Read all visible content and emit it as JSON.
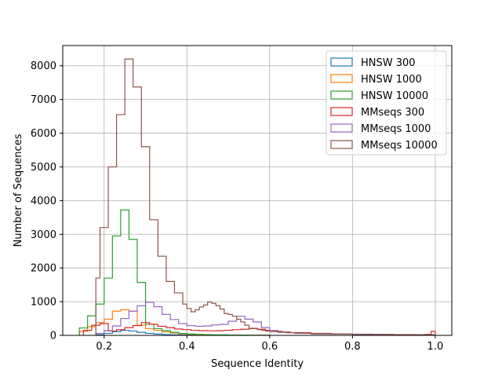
{
  "chart_data": {
    "type": "histogram-step",
    "title": "",
    "xlabel": "Sequence Identity",
    "ylabel": "Number of Sequences",
    "xlim": [
      0.1,
      1.04
    ],
    "ylim": [
      0,
      8600
    ],
    "xticks": [
      0.2,
      0.4,
      0.6,
      0.8,
      1.0
    ],
    "xtick_labels": [
      "0.2",
      "0.4",
      "0.6",
      "0.8",
      "1.0"
    ],
    "yticks": [
      0,
      1000,
      2000,
      3000,
      4000,
      5000,
      6000,
      7000,
      8000
    ],
    "ytick_labels": [
      "0",
      "1000",
      "2000",
      "3000",
      "4000",
      "5000",
      "6000",
      "7000",
      "8000"
    ],
    "grid": true,
    "legend_position": "top-right",
    "series": [
      {
        "name": "HNSW 300",
        "color": "#1f77b4",
        "edges": [
          0.18,
          0.2,
          0.22,
          0.24,
          0.26,
          0.28,
          0.3,
          0.32,
          0.34,
          0.36,
          0.4,
          0.5,
          0.6
        ],
        "counts": [
          20,
          60,
          110,
          150,
          130,
          90,
          60,
          40,
          25,
          15,
          8,
          3
        ]
      },
      {
        "name": "HNSW 1000",
        "color": "#ff7f0e",
        "edges": [
          0.14,
          0.16,
          0.18,
          0.2,
          0.22,
          0.24,
          0.26,
          0.28,
          0.3,
          0.32,
          0.34,
          0.36,
          0.38,
          0.4,
          0.42,
          0.44,
          0.5,
          0.6
        ],
        "counts": [
          120,
          260,
          380,
          480,
          720,
          760,
          720,
          300,
          200,
          150,
          100,
          70,
          50,
          35,
          20,
          10,
          5
        ]
      },
      {
        "name": "HNSW 10000",
        "color": "#2ca02c",
        "edges": [
          0.14,
          0.16,
          0.18,
          0.2,
          0.22,
          0.24,
          0.26,
          0.28,
          0.3,
          0.32,
          0.34,
          0.36,
          0.38,
          0.4,
          0.42,
          0.44,
          0.46,
          0.5,
          0.55,
          0.6
        ],
        "counts": [
          220,
          580,
          930,
          1700,
          2950,
          3720,
          2850,
          1570,
          330,
          200,
          140,
          90,
          60,
          40,
          30,
          20,
          15,
          10,
          5
        ]
      },
      {
        "name": "MMseqs 300",
        "color": "#d62728",
        "edges": [
          0.15,
          0.17,
          0.19,
          0.21,
          0.23,
          0.25,
          0.27,
          0.29,
          0.31,
          0.33,
          0.35,
          0.37,
          0.39,
          0.41,
          0.43,
          0.45,
          0.47,
          0.49,
          0.51,
          0.53,
          0.55,
          0.57,
          0.59,
          0.61,
          0.63,
          0.65,
          0.7,
          0.75,
          0.8,
          0.85,
          0.9,
          0.95,
          0.975,
          0.99,
          1.0
        ],
        "counts": [
          150,
          300,
          350,
          130,
          170,
          230,
          290,
          380,
          330,
          270,
          230,
          190,
          170,
          150,
          140,
          135,
          140,
          150,
          170,
          180,
          210,
          180,
          150,
          120,
          100,
          80,
          60,
          40,
          30,
          25,
          20,
          15,
          30,
          120
        ]
      },
      {
        "name": "MMseqs 1000",
        "color": "#9467bd",
        "edges": [
          0.18,
          0.2,
          0.22,
          0.24,
          0.26,
          0.28,
          0.3,
          0.32,
          0.34,
          0.36,
          0.38,
          0.4,
          0.42,
          0.44,
          0.46,
          0.48,
          0.5,
          0.52,
          0.54,
          0.56,
          0.58,
          0.6,
          0.62,
          0.64,
          0.66,
          0.7,
          0.8,
          0.9,
          1.0
        ],
        "counts": [
          60,
          140,
          280,
          500,
          720,
          880,
          980,
          850,
          620,
          470,
          350,
          290,
          270,
          280,
          310,
          330,
          420,
          570,
          480,
          400,
          230,
          150,
          100,
          80,
          60,
          40,
          25,
          15
        ]
      },
      {
        "name": "MMseqs 10000",
        "color": "#8c564b",
        "edges": [
          0.18,
          0.19,
          0.2,
          0.21,
          0.22,
          0.23,
          0.24,
          0.25,
          0.26,
          0.27,
          0.28,
          0.29,
          0.3,
          0.31,
          0.32,
          0.33,
          0.34,
          0.35,
          0.36,
          0.37,
          0.38,
          0.39,
          0.4,
          0.41,
          0.42,
          0.43,
          0.44,
          0.45,
          0.46,
          0.47,
          0.48,
          0.49,
          0.5,
          0.51,
          0.52,
          0.53,
          0.54,
          0.55,
          0.56,
          0.57,
          0.58,
          0.59,
          0.6,
          0.62,
          0.64,
          0.66,
          0.68,
          0.7,
          0.75,
          0.8,
          0.85,
          0.9,
          0.95,
          0.98,
          1.0
        ],
        "counts": [
          1700,
          3200,
          3200,
          5000,
          5000,
          6550,
          6550,
          8200,
          8200,
          7370,
          7370,
          5600,
          5600,
          3430,
          3430,
          2350,
          2350,
          1600,
          1600,
          1260,
          1260,
          930,
          800,
          700,
          760,
          840,
          900,
          990,
          950,
          880,
          780,
          650,
          620,
          570,
          480,
          400,
          300,
          200,
          200,
          170,
          150,
          130,
          110,
          90,
          80,
          70,
          60,
          50,
          40,
          35,
          30,
          25,
          20,
          15
        ]
      }
    ]
  }
}
